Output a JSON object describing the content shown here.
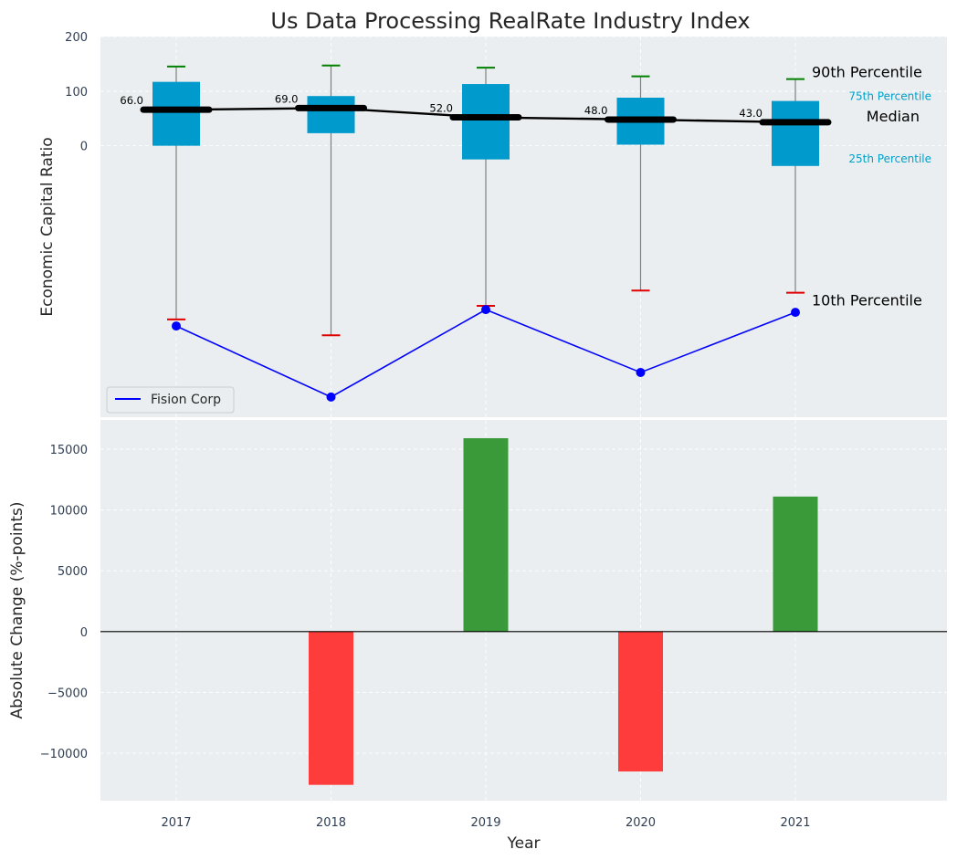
{
  "chart_data": [
    {
      "type": "box",
      "title": "Us Data Processing RealRate Industry Index",
      "xlabel": "",
      "ylabel": "Economic Capital Ratio",
      "ylim": [
        -497,
        200
      ],
      "yticks": [
        200,
        100,
        0
      ],
      "categories": [
        "2017",
        "2018",
        "2019",
        "2020",
        "2021"
      ],
      "p10": [
        -318,
        -347,
        -293,
        -265,
        -269
      ],
      "p25": [
        0,
        23,
        -25,
        2,
        -37
      ],
      "median": [
        66,
        69,
        52,
        48,
        43
      ],
      "p75": [
        117,
        91,
        113,
        88,
        82
      ],
      "p90": [
        145,
        147,
        143,
        127,
        122
      ],
      "median_labels": [
        "66.0",
        "69.0",
        "52.0",
        "48.0",
        "43.0"
      ],
      "series": [
        {
          "name": "Fision Corp",
          "values": [
            -330,
            -460,
            -300,
            -415,
            -305
          ]
        }
      ],
      "annotations": {
        "p90": "90th Percentile",
        "p75": "75th Percentile",
        "median": "Median",
        "p25": "25th Percentile",
        "p10": "10th Percentile"
      },
      "legend": "bottom-left"
    },
    {
      "type": "bar",
      "xlabel": "Year",
      "ylabel": "Absolute Change (%-points)",
      "ylim": [
        -13900,
        17400
      ],
      "yticks": [
        15000,
        10000,
        5000,
        0,
        -5000,
        -10000
      ],
      "categories": [
        "2017",
        "2018",
        "2019",
        "2020",
        "2021"
      ],
      "values": [
        0,
        -12600,
        15900,
        -11500,
        11100
      ]
    }
  ],
  "colors": {
    "background": "#eaeef0",
    "box": "#009acd",
    "median": "#000000",
    "p90_cap": "#008000",
    "p10_cap": "#e00000",
    "whisker": "#808080",
    "series": "#0000ff",
    "positive": "#3a9a3a",
    "negative": "#ff3c3c",
    "p75_text": "#00a0c8"
  }
}
